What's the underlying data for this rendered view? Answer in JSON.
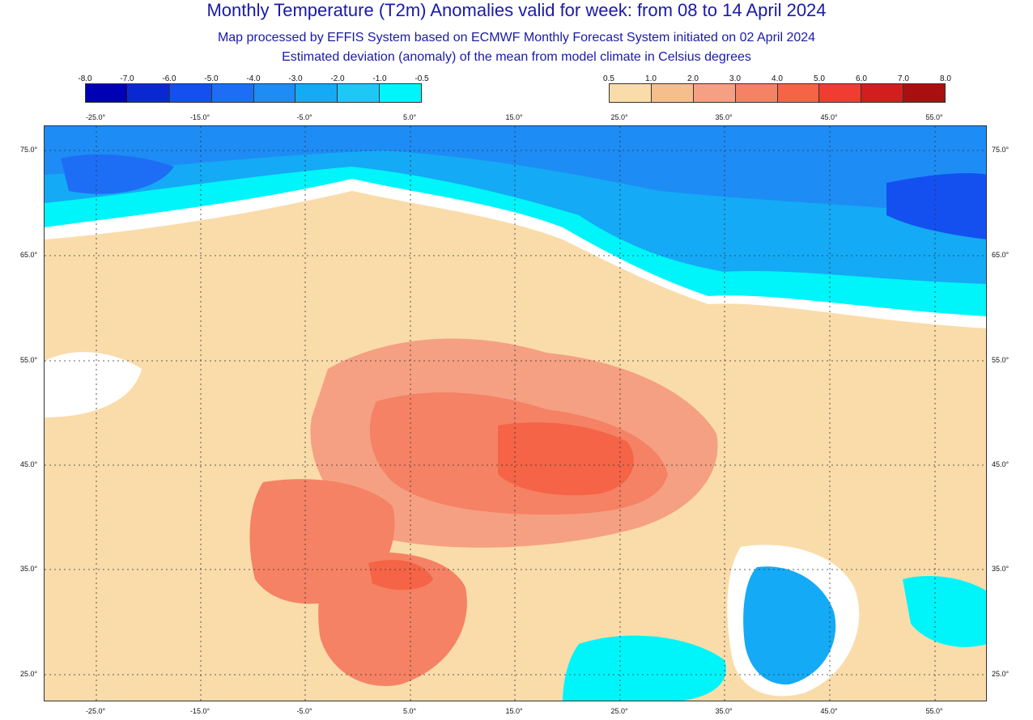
{
  "header": {
    "title": "Monthly Temperature (T2m) Anomalies valid for week: from 08 to 14 April 2024",
    "subtitle1": "Map processed by EFFIS System based on ECMWF Monthly Forecast System initiated on 02 April 2024",
    "subtitle2": "Estimated deviation (anomaly) of the mean from model climate in Celsius degrees"
  },
  "colorbar_negative": {
    "labels": [
      "-8.0",
      "-7.0",
      "-6.0",
      "-5.0",
      "-4.0",
      "-3.0",
      "-2.0",
      "-1.0",
      "-0.5"
    ],
    "colors": [
      "#0000b4",
      "#0a28d2",
      "#1450f0",
      "#1e6ef5",
      "#1e8cf5",
      "#14aaf5",
      "#1ec8f5",
      "#00f5fa"
    ]
  },
  "colorbar_positive": {
    "labels": [
      "0.5",
      "1.0",
      "2.0",
      "3.0",
      "4.0",
      "5.0",
      "6.0",
      "7.0",
      "8.0"
    ],
    "colors": [
      "#fadcaa",
      "#f5be8c",
      "#f5a082",
      "#f58264",
      "#f56446",
      "#f03c32",
      "#d21e1e",
      "#aa0f0f"
    ]
  },
  "map": {
    "lon_ticks": [
      "-25.0°",
      "-15.0°",
      "-5.0°",
      "5.0°",
      "15.0°",
      "25.0°",
      "35.0°",
      "45.0°",
      "55.0°"
    ],
    "lat_ticks": [
      "75.0°",
      "65.0°",
      "55.0°",
      "45.0°",
      "35.0°",
      "25.0°"
    ]
  }
}
